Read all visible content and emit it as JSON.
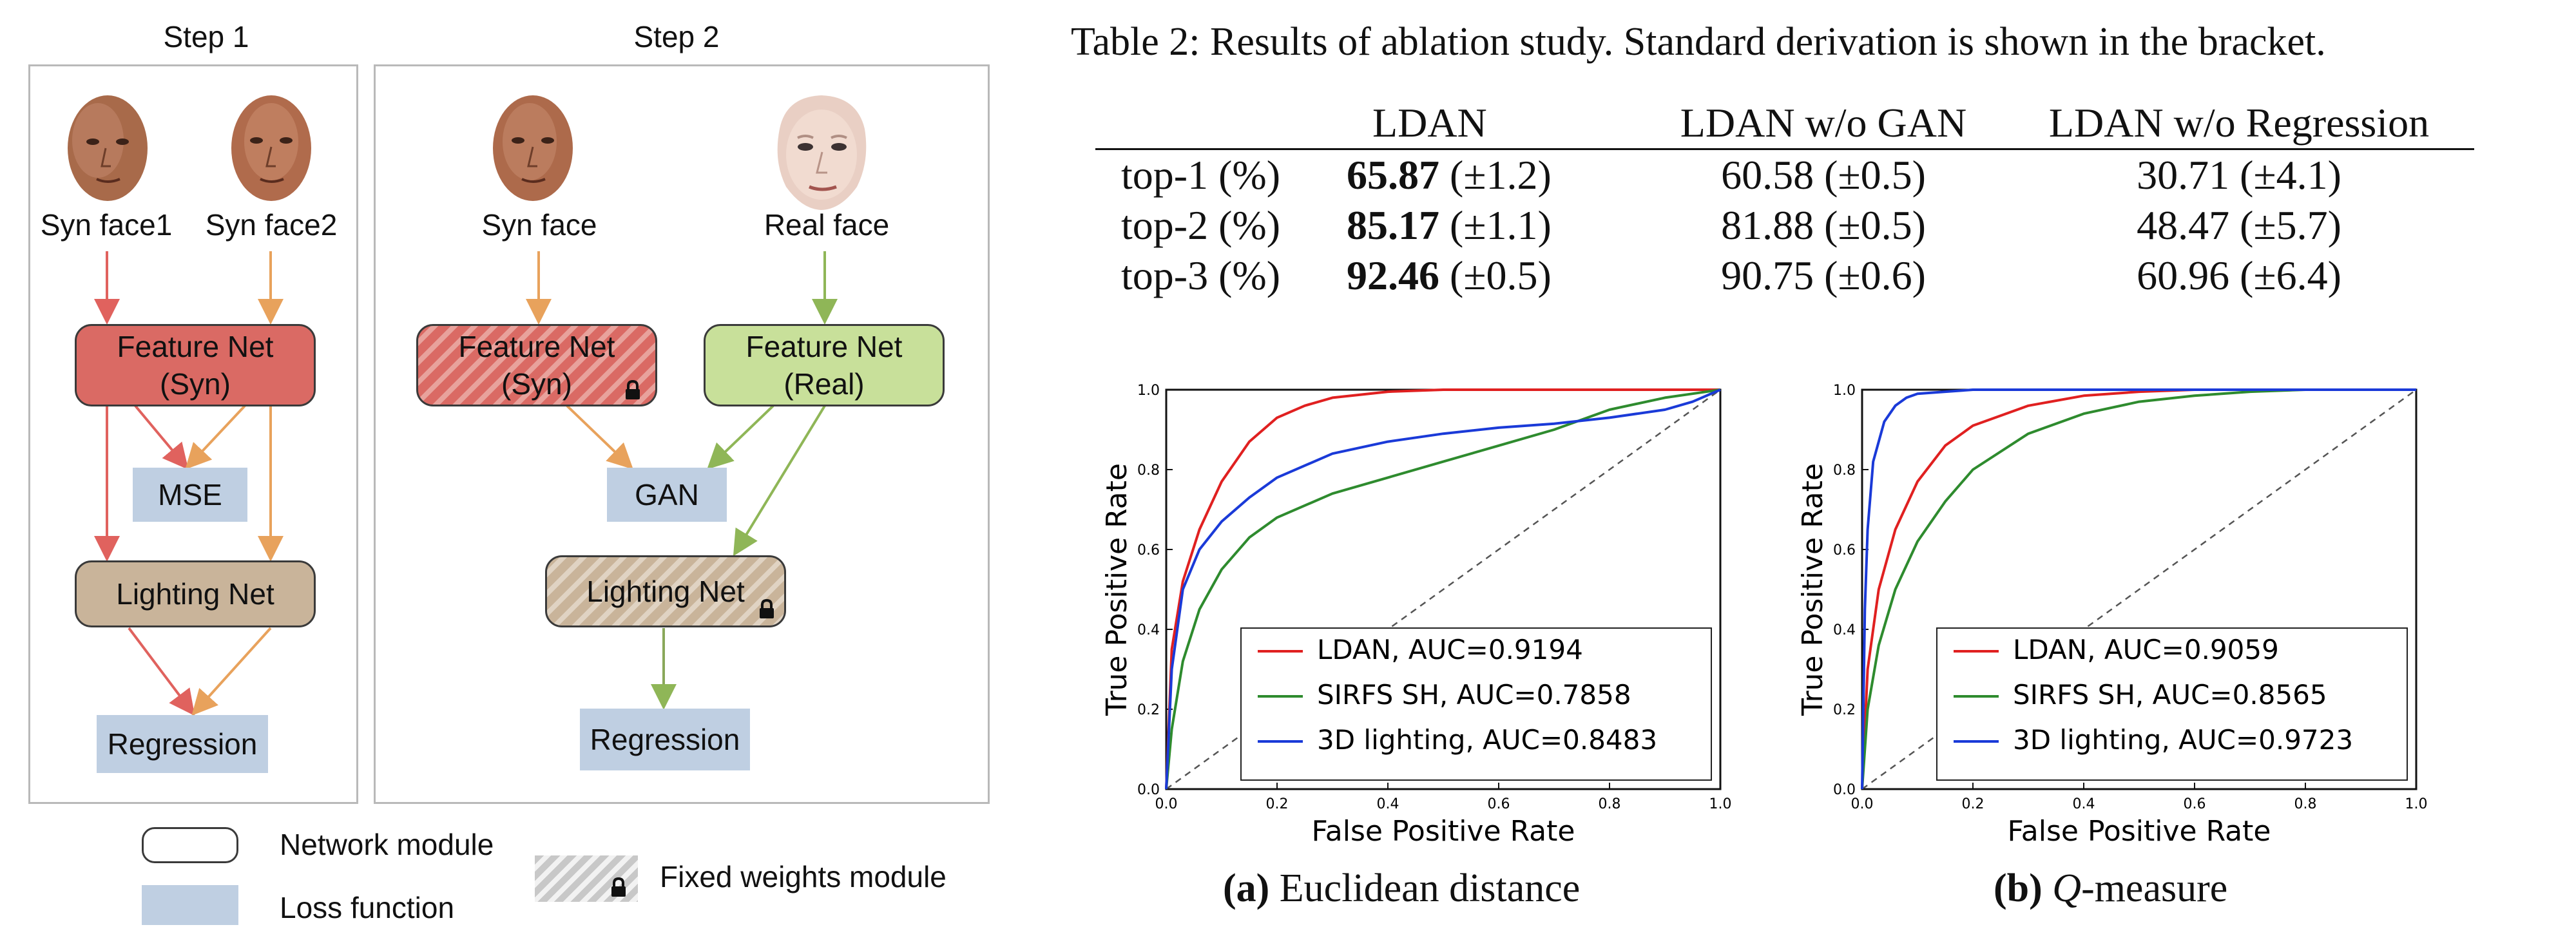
{
  "figure": {
    "step1_title": "Step 1",
    "step2_title": "Step 2",
    "faces": {
      "syn_face1": "Syn face1",
      "syn_face2": "Syn face2",
      "syn_face": "Syn face",
      "real_face": "Real face"
    },
    "modules": {
      "feature_net": "Feature Net",
      "syn_suffix": "(Syn)",
      "real_suffix": "(Real)",
      "lighting_net": "Lighting Net",
      "mse": "MSE",
      "gan": "GAN",
      "regression": "Regression"
    },
    "legend": {
      "network_module": "Network module",
      "loss_function": "Loss function",
      "fixed_weights": "Fixed weights module"
    },
    "colors": {
      "syn_arrow_red": "#e0625e",
      "syn_arrow_orange": "#e8a25c",
      "real_arrow_green": "#8fb657",
      "lighting_arrow": "#8aa85a"
    }
  },
  "table": {
    "caption": "Table 2: Results of ablation study. Standard derivation is shown in the bracket.",
    "columns": [
      "",
      "LDAN",
      "LDAN w/o GAN",
      "LDAN w/o Regression"
    ],
    "rows": [
      {
        "label": "top-1 (%)",
        "ldan_best": "65.87",
        "ldan_sd": "(±1.2)",
        "no_gan": "60.58 (±0.5)",
        "no_reg": "30.71 (±4.1)"
      },
      {
        "label": "top-2 (%)",
        "ldan_best": "85.17",
        "ldan_sd": "(±1.1)",
        "no_gan": "81.88 (±0.5)",
        "no_reg": "48.47 (±5.7)"
      },
      {
        "label": "top-3 (%)",
        "ldan_best": "92.46",
        "ldan_sd": "(±0.5)",
        "no_gan": "90.75 (±0.6)",
        "no_reg": "60.96 (±6.4)"
      }
    ]
  },
  "captions": {
    "a_prefix": "(a)",
    "a_text": "Euclidean distance",
    "b_prefix": "(b)",
    "b_q": "Q",
    "b_text": "-measure"
  },
  "chart_data": [
    {
      "type": "line",
      "xlabel": "False Positive Rate",
      "ylabel": "True Positive Rate",
      "xlim": [
        0,
        1
      ],
      "ylim": [
        0,
        1
      ],
      "xticks": [
        "0.0",
        "0.2",
        "0.4",
        "0.6",
        "0.8",
        "1.0"
      ],
      "yticks": [
        "0.0",
        "0.2",
        "0.4",
        "0.6",
        "0.8",
        "1.0"
      ],
      "legend_position": "bottom-right",
      "diagonal": true,
      "series": [
        {
          "name": "LDAN, AUC=0.9194",
          "color": "#e02020",
          "x": [
            0,
            0.01,
            0.03,
            0.06,
            0.1,
            0.15,
            0.2,
            0.25,
            0.3,
            0.4,
            0.5,
            0.6,
            0.8,
            1.0
          ],
          "y": [
            0,
            0.35,
            0.52,
            0.65,
            0.77,
            0.87,
            0.93,
            0.96,
            0.98,
            0.995,
            1.0,
            1.0,
            1.0,
            1.0
          ]
        },
        {
          "name": "SIRFS SH, AUC=0.7858",
          "color": "#2e8b2e",
          "x": [
            0,
            0.01,
            0.03,
            0.06,
            0.1,
            0.15,
            0.2,
            0.3,
            0.4,
            0.5,
            0.6,
            0.7,
            0.8,
            0.9,
            0.95,
            1.0
          ],
          "y": [
            0,
            0.15,
            0.32,
            0.45,
            0.55,
            0.63,
            0.68,
            0.74,
            0.78,
            0.82,
            0.86,
            0.9,
            0.95,
            0.98,
            0.99,
            1.0
          ]
        },
        {
          "name": "3D lighting, AUC=0.8483",
          "color": "#1a3ad8",
          "x": [
            0,
            0.01,
            0.03,
            0.06,
            0.1,
            0.15,
            0.2,
            0.3,
            0.4,
            0.5,
            0.6,
            0.7,
            0.8,
            0.9,
            0.95,
            1.0
          ],
          "y": [
            0,
            0.3,
            0.5,
            0.6,
            0.67,
            0.73,
            0.78,
            0.84,
            0.87,
            0.89,
            0.905,
            0.915,
            0.93,
            0.95,
            0.97,
            1.0
          ]
        }
      ]
    },
    {
      "type": "line",
      "xlabel": "False Positive Rate",
      "ylabel": "True Positive Rate",
      "xlim": [
        0,
        1
      ],
      "ylim": [
        0,
        1
      ],
      "xticks": [
        "0.0",
        "0.2",
        "0.4",
        "0.6",
        "0.8",
        "1.0"
      ],
      "yticks": [
        "0.0",
        "0.2",
        "0.4",
        "0.6",
        "0.8",
        "1.0"
      ],
      "legend_position": "bottom-right",
      "diagonal": true,
      "series": [
        {
          "name": "LDAN, AUC=0.9059",
          "color": "#e02020",
          "x": [
            0,
            0.01,
            0.03,
            0.06,
            0.1,
            0.15,
            0.2,
            0.3,
            0.4,
            0.5,
            0.6,
            0.8,
            1.0
          ],
          "y": [
            0,
            0.3,
            0.5,
            0.65,
            0.77,
            0.86,
            0.91,
            0.96,
            0.985,
            0.995,
            1.0,
            1.0,
            1.0
          ]
        },
        {
          "name": "SIRFS SH, AUC=0.8565",
          "color": "#2e8b2e",
          "x": [
            0,
            0.01,
            0.03,
            0.06,
            0.1,
            0.15,
            0.2,
            0.3,
            0.4,
            0.5,
            0.6,
            0.7,
            0.8,
            1.0
          ],
          "y": [
            0,
            0.2,
            0.36,
            0.5,
            0.62,
            0.72,
            0.8,
            0.89,
            0.94,
            0.97,
            0.985,
            0.995,
            1.0,
            1.0
          ]
        },
        {
          "name": "3D lighting, AUC=0.9723",
          "color": "#1a3ad8",
          "x": [
            0,
            0.005,
            0.01,
            0.02,
            0.04,
            0.06,
            0.08,
            0.1,
            0.15,
            0.2,
            0.3,
            0.5,
            1.0
          ],
          "y": [
            0,
            0.45,
            0.65,
            0.82,
            0.92,
            0.96,
            0.98,
            0.99,
            0.995,
            1.0,
            1.0,
            1.0,
            1.0
          ]
        }
      ]
    }
  ]
}
